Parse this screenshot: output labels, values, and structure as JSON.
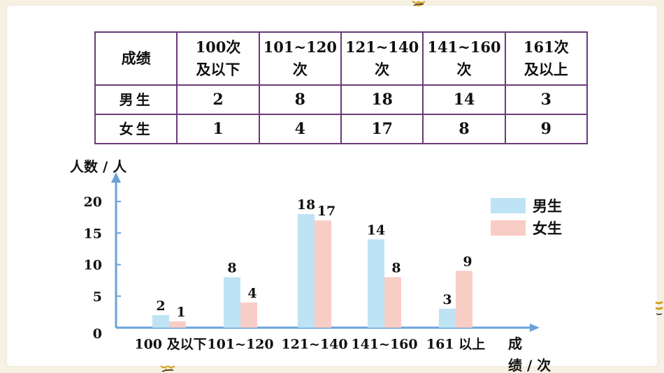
{
  "table": {
    "header": [
      "成绩",
      "100次及以下",
      "101~120次",
      "121~140次",
      "141~160次",
      "161次及以上"
    ],
    "rows": [
      {
        "label": "男生",
        "values": [
          "2",
          "8",
          "18",
          "14",
          "3"
        ]
      },
      {
        "label": "女生",
        "values": [
          "1",
          "4",
          "17",
          "8",
          "9"
        ]
      }
    ]
  },
  "chart_data": {
    "type": "bar",
    "ylabel": "人数 / 人",
    "xlabel": "成绩 / 次",
    "categories": [
      "100 及以下",
      "101~120",
      "121~140",
      "141~160",
      "161 以上"
    ],
    "yticks": [
      "0",
      "5",
      "10",
      "15",
      "20"
    ],
    "ylim": [
      0,
      20
    ],
    "legend_position": "top-right",
    "series": [
      {
        "name": "男生",
        "color": "#bde3f5",
        "values": [
          2,
          8,
          18,
          14,
          3
        ]
      },
      {
        "name": "女生",
        "color": "#f8cdc6",
        "values": [
          1,
          4,
          17,
          8,
          9
        ]
      }
    ],
    "axis_color": "#6aa2d8"
  }
}
